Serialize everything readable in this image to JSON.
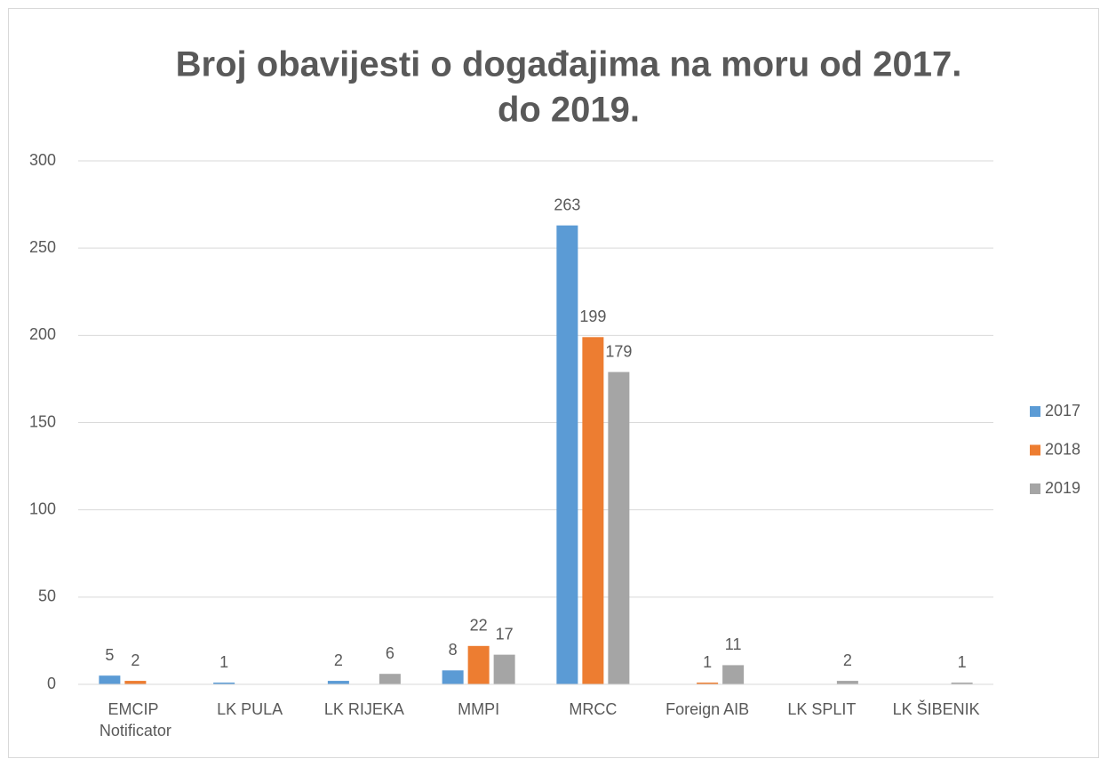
{
  "chart_data": {
    "type": "bar",
    "title": [
      "Broj obavijesti o događajima na moru od 2017.",
      "do 2019."
    ],
    "categories": [
      "EMCIP Notificator",
      "LK PULA",
      "LK RIJEKA",
      "MMPI",
      "MRCC",
      "Foreign AIB",
      "LK SPLIT",
      "LK ŠIBENIK"
    ],
    "series": [
      {
        "name": "2017",
        "color": "#5b9bd5",
        "values": [
          5,
          1,
          2,
          8,
          263,
          null,
          null,
          null
        ]
      },
      {
        "name": "2018",
        "color": "#ed7d31",
        "values": [
          2,
          null,
          null,
          22,
          199,
          1,
          null,
          null
        ]
      },
      {
        "name": "2019",
        "color": "#a5a5a5",
        "values": [
          null,
          null,
          6,
          17,
          179,
          11,
          2,
          1
        ]
      }
    ],
    "ylim": [
      0,
      300
    ],
    "yticks": [
      0,
      50,
      100,
      150,
      200,
      250,
      300
    ],
    "grid": true,
    "legend": "right"
  }
}
